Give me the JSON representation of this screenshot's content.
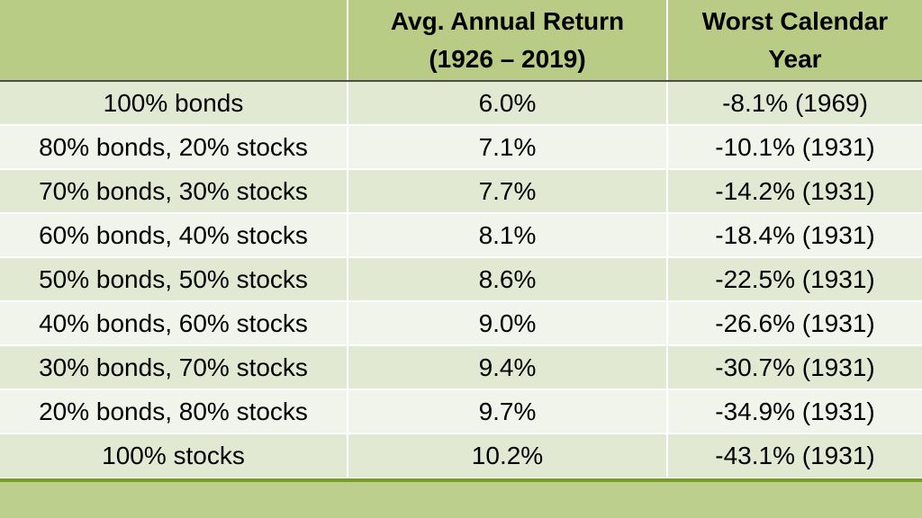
{
  "table": {
    "headers": [
      {
        "lines": [
          ""
        ]
      },
      {
        "lines": [
          "Avg. Annual Return",
          "(1926 – 2019)"
        ]
      },
      {
        "lines": [
          "Worst Calendar",
          "Year"
        ]
      }
    ],
    "rows": [
      {
        "allocation": "100% bonds",
        "avg_return": "6.0%",
        "worst_year": "-8.1% (1969)"
      },
      {
        "allocation": "80% bonds, 20% stocks",
        "avg_return": "7.1%",
        "worst_year": "-10.1% (1931)"
      },
      {
        "allocation": "70% bonds, 30% stocks",
        "avg_return": "7.7%",
        "worst_year": "-14.2% (1931)"
      },
      {
        "allocation": "60% bonds, 40% stocks",
        "avg_return": "8.1%",
        "worst_year": "-18.4% (1931)"
      },
      {
        "allocation": "50% bonds, 50% stocks",
        "avg_return": "8.6%",
        "worst_year": "-22.5% (1931)"
      },
      {
        "allocation": "40% bonds, 60% stocks",
        "avg_return": "9.0%",
        "worst_year": "-26.6% (1931)"
      },
      {
        "allocation": "30% bonds, 70% stocks",
        "avg_return": "9.4%",
        "worst_year": "-30.7% (1931)"
      },
      {
        "allocation": "20% bonds, 80% stocks",
        "avg_return": "9.7%",
        "worst_year": "-34.9% (1931)"
      },
      {
        "allocation": "100% stocks",
        "avg_return": "10.2%",
        "worst_year": "-43.1% (1931)"
      }
    ]
  },
  "colors": {
    "header_bg": "#b9cc85",
    "row_odd_bg": "#e2e9d3",
    "row_even_bg": "#f0f4eb",
    "accent_rule": "#7a9a2b",
    "footer_band": "#bccf8c"
  }
}
